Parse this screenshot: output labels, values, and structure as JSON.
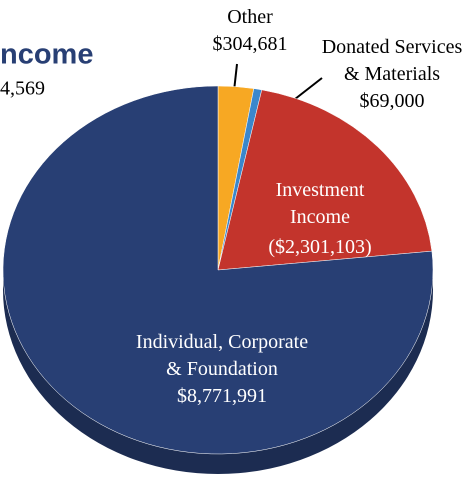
{
  "chart_data": {
    "type": "pie",
    "title": "ncome",
    "subtitle": "4,569",
    "categories": [
      "Other",
      "Donated Services & Materials",
      "Investment Income",
      "Individual, Corporate & Foundation"
    ],
    "values": [
      304681,
      69000,
      -2301103,
      8771991
    ],
    "value_labels": [
      "$304,681",
      "$69,000",
      "($2,301,103)",
      "$8,771,991"
    ],
    "colors": [
      "#f7a823",
      "#3a87cc",
      "#c3342c",
      "#283f74"
    ]
  }
}
